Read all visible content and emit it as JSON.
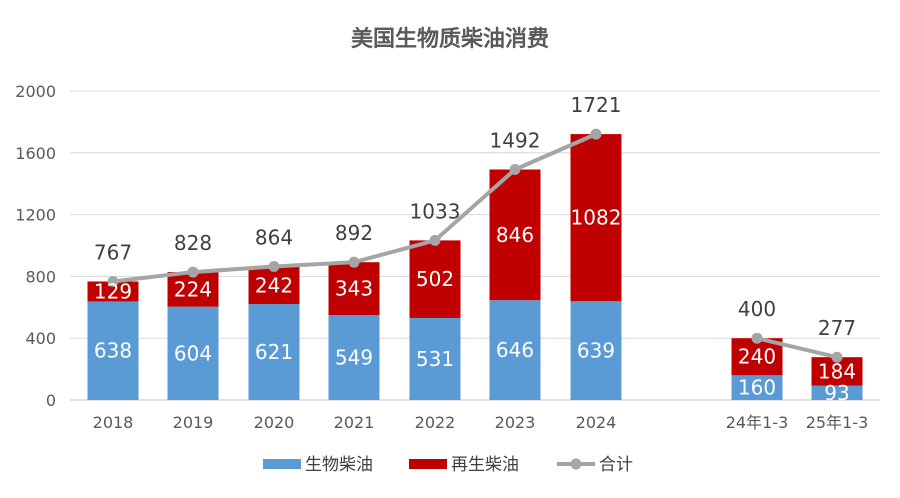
{
  "chart_data": {
    "type": "bar",
    "stacked": true,
    "title": "美国生物质柴油消费",
    "xlabel": "",
    "ylabel": "",
    "ylim": [
      0,
      2000
    ],
    "yticks": [
      0,
      400,
      800,
      1200,
      1600,
      2000
    ],
    "grid": true,
    "legend_position": "bottom",
    "categories": [
      "2018",
      "2019",
      "2020",
      "2021",
      "2022",
      "2023",
      "2024",
      "24年1-3",
      "25年1-3"
    ],
    "series": [
      {
        "name": "生物柴油",
        "type": "bar",
        "color": "#5b9bd5",
        "values": [
          638,
          604,
          621,
          549,
          531,
          646,
          639,
          160,
          93
        ]
      },
      {
        "name": "再生柴油",
        "type": "bar",
        "color": "#c00000",
        "values": [
          129,
          224,
          242,
          343,
          502,
          846,
          1082,
          240,
          184
        ]
      },
      {
        "name": "合计",
        "type": "line",
        "color": "#a5a5a5",
        "values": [
          767,
          828,
          864,
          892,
          1033,
          1492,
          1721,
          400,
          277
        ],
        "line_groups": [
          [
            0,
            6
          ],
          [
            7,
            8
          ]
        ]
      }
    ]
  }
}
